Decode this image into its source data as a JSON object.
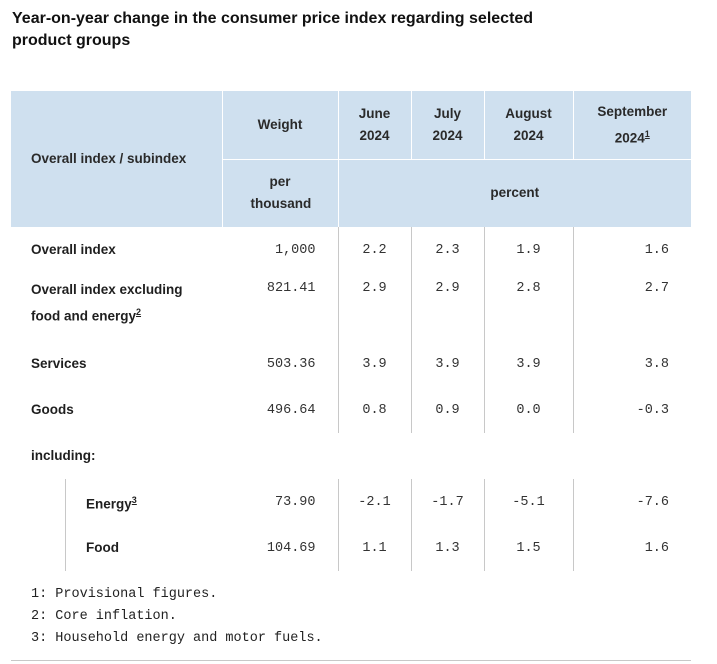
{
  "title": "Year-on-year change in the consumer price index regarding selected product groups",
  "header": {
    "row_label": "Overall index / subindex",
    "weight_label": "Weight",
    "weight_unit": "per thousand",
    "months": [
      {
        "line1": "June",
        "line2": "2024",
        "note": ""
      },
      {
        "line1": "July",
        "line2": "2024",
        "note": ""
      },
      {
        "line1": "August",
        "line2": "2024",
        "note": ""
      },
      {
        "line1": "September",
        "line2": "2024",
        "note": "1"
      }
    ],
    "percent_label": "percent"
  },
  "rows": [
    {
      "label": "Overall index",
      "note": "",
      "weight": "1,000",
      "values": [
        "2.2",
        "2.3",
        "1.9",
        "1.6"
      ]
    },
    {
      "label": "Overall index excluding",
      "label2": "food and energy",
      "note": "2",
      "weight": "821.41",
      "values": [
        "2.9",
        "2.9",
        "2.8",
        "2.7"
      ]
    },
    {
      "label": "Services",
      "note": "",
      "weight": "503.36",
      "values": [
        "3.9",
        "3.9",
        "3.9",
        "3.8"
      ]
    },
    {
      "label": "Goods",
      "note": "",
      "weight": "496.64",
      "values": [
        "0.8",
        "0.9",
        "0.0",
        "-0.3"
      ]
    }
  ],
  "including_label": "including:",
  "subrows": [
    {
      "label": "Energy",
      "note": "3",
      "weight": "73.90",
      "values": [
        "-2.1",
        "-1.7",
        "-5.1",
        "-7.6"
      ]
    },
    {
      "label": "Food",
      "note": "",
      "weight": "104.69",
      "values": [
        "1.1",
        "1.3",
        "1.5",
        "1.6"
      ]
    }
  ],
  "footnotes": [
    "1: Provisional figures.",
    "2: Core inflation.",
    "3: Household energy and motor fuels."
  ]
}
